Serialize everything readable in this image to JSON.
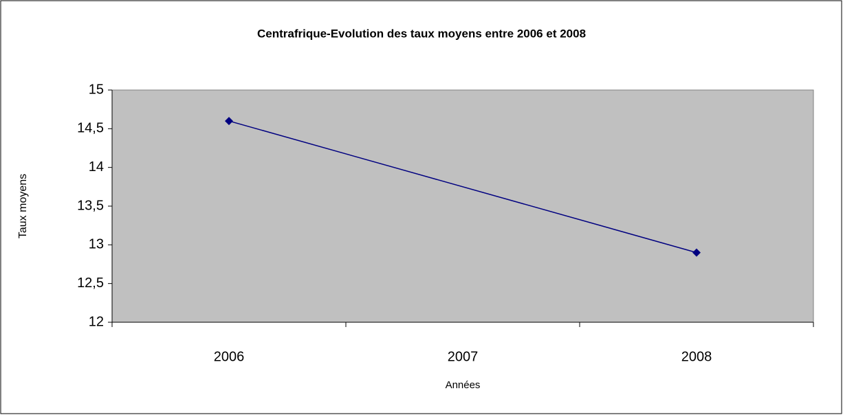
{
  "chart_data": {
    "type": "line",
    "title": "Centrafrique-Evolution des taux moyens entre 2006 et 2008",
    "x_label": "Années",
    "y_label": "Taux moyens",
    "x": [
      2006,
      2008
    ],
    "series": [
      {
        "name": "Taux moyens",
        "color": "#000080",
        "values": [
          14.6,
          12.9
        ]
      }
    ],
    "xlim": [
      2005.5,
      2008.5
    ],
    "xticks": [
      2006,
      2007,
      2008
    ],
    "ylim": [
      12,
      15
    ],
    "yticks": [
      12,
      {
        "value": 12.5,
        "label": "12,5"
      },
      13,
      {
        "value": 13.5,
        "label": "13,5"
      },
      14,
      {
        "value": 14.5,
        "label": "14,5"
      },
      15
    ],
    "grid": true,
    "plot_background": "#c0c0c0"
  }
}
